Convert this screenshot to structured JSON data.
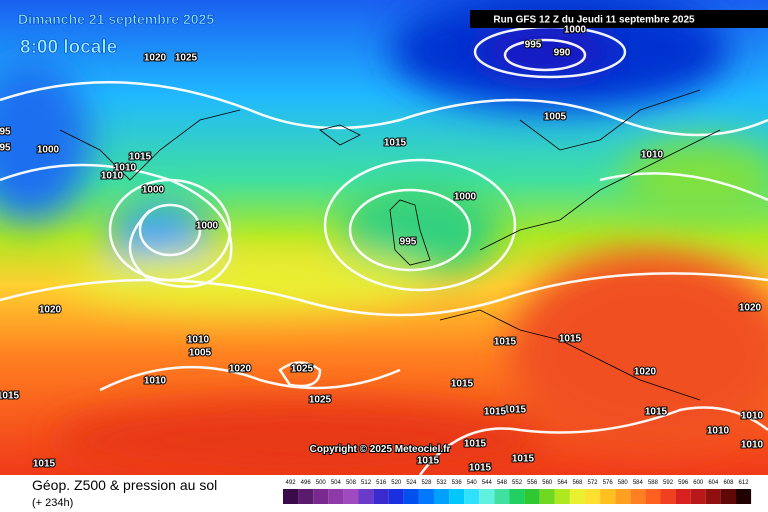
{
  "header": {
    "date": "Dimanche 21 septembre 2025",
    "time": "8:00 locale",
    "run": "Run GFS 12 Z du Jeudi 11 septembre 2025"
  },
  "copyright": "Copyright © 2025 Meteociel.fr",
  "footer": {
    "title": "Géop. Z500 & pression au sol",
    "lead": "(+ 234h)"
  },
  "isobar_labels": [
    "1000",
    "995",
    "990",
    "1020",
    "1025",
    "95",
    "95",
    "1000",
    "1015",
    "1010",
    "1010",
    "1005",
    "1015",
    "1010",
    "1000",
    "1000",
    "1000",
    "995",
    "1020",
    "1020",
    "1010",
    "1005",
    "1015",
    "1015",
    "1020",
    "1025",
    "1010",
    "1015",
    "1015",
    "1025",
    "1020",
    "1015",
    "1015",
    "1015",
    "1010",
    "1010",
    "1015",
    "1015",
    "1015",
    "1015",
    "1015",
    "1010"
  ],
  "scale": {
    "values": [
      492,
      496,
      500,
      504,
      508,
      512,
      516,
      520,
      524,
      528,
      532,
      536,
      540,
      544,
      548,
      552,
      556,
      560,
      564,
      568,
      572,
      576,
      580,
      584,
      588,
      592,
      596,
      600,
      604,
      608,
      612
    ],
    "colors": [
      "#3a0a4a",
      "#5a1a6e",
      "#7a2a8e",
      "#8e3aa8",
      "#a04ac0",
      "#6a3ac8",
      "#3a2ad0",
      "#1a30e0",
      "#0050f0",
      "#0078ff",
      "#00a0ff",
      "#00c8ff",
      "#30e0ff",
      "#60f0e0",
      "#40e0a0",
      "#20d060",
      "#30c830",
      "#70d820",
      "#b0e820",
      "#e8f030",
      "#ffe030",
      "#ffc020",
      "#ffa020",
      "#ff8020",
      "#ff6020",
      "#f04020",
      "#d82020",
      "#b81818",
      "#901010",
      "#600808",
      "#200000"
    ]
  }
}
